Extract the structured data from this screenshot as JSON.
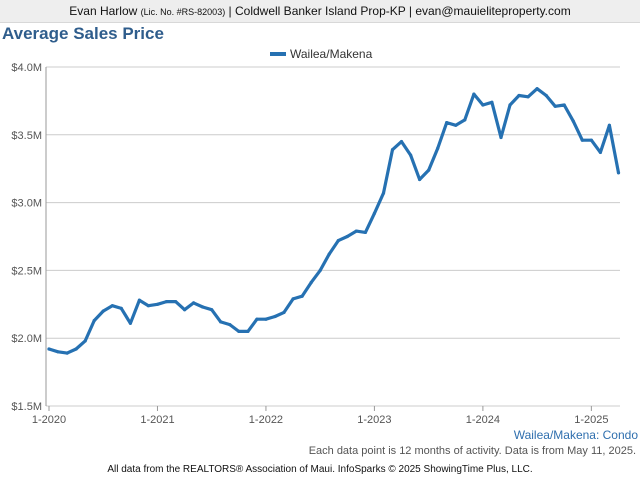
{
  "header": {
    "agent_name": "Evan Harlow",
    "license": "(Lic. No. #RS-82003)",
    "brokerage": "| Coldwell Banker Island Prop-KP |",
    "email": "evan@mauieliteproperty.com"
  },
  "colors": {
    "series": "#2671b2",
    "title": "#2f5d8c",
    "grid": "#cccccc"
  },
  "chart_data": {
    "type": "line",
    "title": "Average Sales Price",
    "xlabel": "",
    "ylabel": "",
    "legend_position": "top-center",
    "grid": true,
    "ylim": [
      1.5,
      4.0
    ],
    "y_ticks": [
      1.5,
      2.0,
      2.5,
      3.0,
      3.5,
      4.0
    ],
    "y_tick_labels": [
      "$1.5M",
      "$2.0M",
      "$2.5M",
      "$3.0M",
      "$3.5M",
      "$4.0M"
    ],
    "x_ticks": [
      "1-2020",
      "1-2021",
      "1-2022",
      "1-2023",
      "1-2024",
      "1-2025"
    ],
    "x": [
      "1-2020",
      "2-2020",
      "3-2020",
      "4-2020",
      "5-2020",
      "6-2020",
      "7-2020",
      "8-2020",
      "9-2020",
      "10-2020",
      "11-2020",
      "12-2020",
      "1-2021",
      "2-2021",
      "3-2021",
      "4-2021",
      "5-2021",
      "6-2021",
      "7-2021",
      "8-2021",
      "9-2021",
      "10-2021",
      "11-2021",
      "12-2021",
      "1-2022",
      "2-2022",
      "3-2022",
      "4-2022",
      "5-2022",
      "6-2022",
      "7-2022",
      "8-2022",
      "9-2022",
      "10-2022",
      "11-2022",
      "12-2022",
      "1-2023",
      "2-2023",
      "3-2023",
      "4-2023",
      "5-2023",
      "6-2023",
      "7-2023",
      "8-2023",
      "9-2023",
      "10-2023",
      "11-2023",
      "12-2023",
      "1-2024",
      "2-2024",
      "3-2024",
      "4-2024",
      "5-2024",
      "6-2024",
      "7-2024",
      "8-2024",
      "9-2024",
      "10-2024",
      "11-2024",
      "12-2024",
      "1-2025",
      "2-2025",
      "3-2025",
      "4-2025"
    ],
    "series": [
      {
        "name": "Wailea/Makena",
        "values": [
          1.92,
          1.9,
          1.89,
          1.92,
          1.98,
          2.13,
          2.2,
          2.24,
          2.22,
          2.11,
          2.28,
          2.24,
          2.25,
          2.27,
          2.27,
          2.21,
          2.26,
          2.23,
          2.21,
          2.12,
          2.1,
          2.05,
          2.05,
          2.14,
          2.14,
          2.16,
          2.19,
          2.29,
          2.31,
          2.41,
          2.5,
          2.62,
          2.72,
          2.75,
          2.79,
          2.78,
          2.92,
          3.07,
          3.39,
          3.45,
          3.35,
          3.17,
          3.24,
          3.4,
          3.59,
          3.57,
          3.61,
          3.8,
          3.72,
          3.74,
          3.48,
          3.72,
          3.79,
          3.78,
          3.84,
          3.79,
          3.71,
          3.72,
          3.6,
          3.46,
          3.46,
          3.37,
          3.57,
          3.22
        ]
      }
    ]
  },
  "footnotes": {
    "area_label": "Wailea/Makena: Condo",
    "data_note": "Each data point is 12 months of activity. Data is from May 11, 2025.",
    "credit": "All data from the REALTORS® Association of Maui. InfoSparks © 2025 ShowingTime Plus, LLC."
  }
}
